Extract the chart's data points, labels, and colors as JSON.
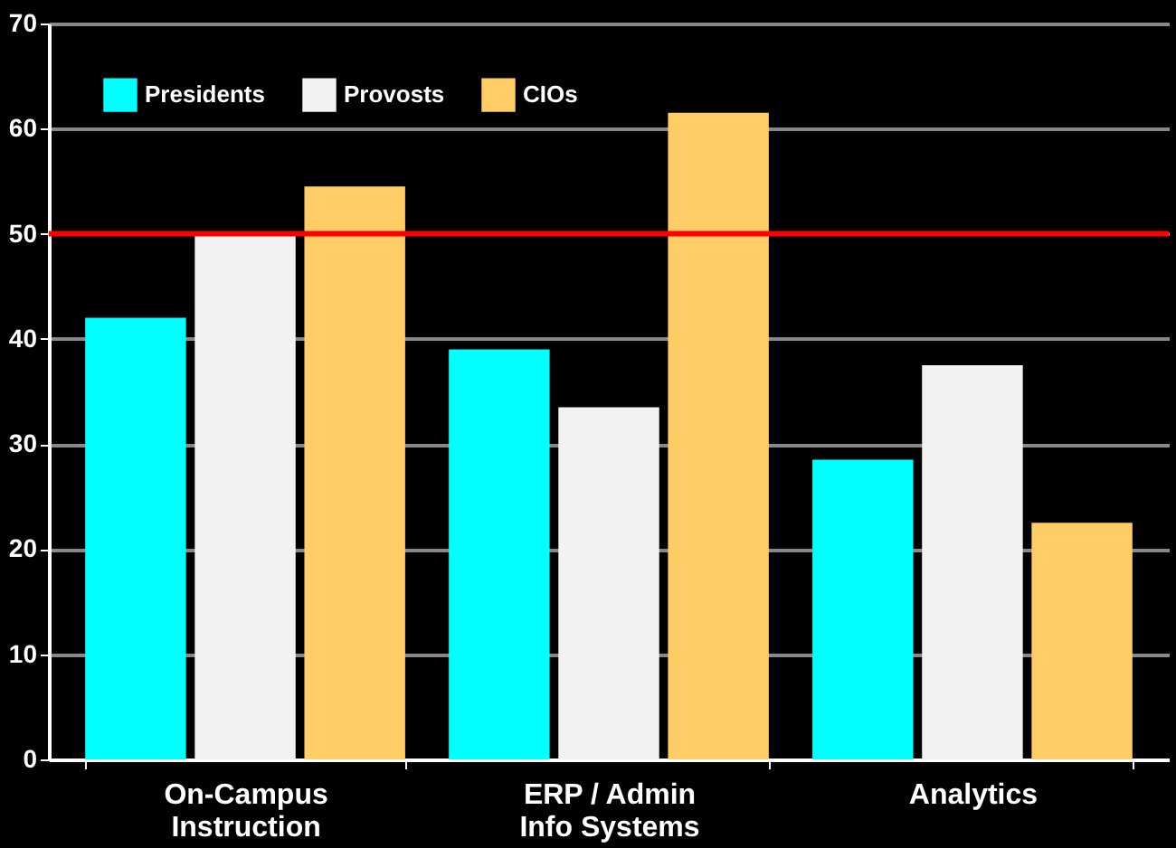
{
  "chart_data": {
    "type": "bar",
    "categories": [
      "On-Campus\nInstruction",
      "ERP / Admin\nInfo Systems",
      "Analytics"
    ],
    "series": [
      {
        "name": "Presidents",
        "color": "#00ffff",
        "values": [
          42,
          39,
          28.5
        ]
      },
      {
        "name": "Provosts",
        "color": "#f2f2f2",
        "values": [
          50,
          33.5,
          37.5
        ]
      },
      {
        "name": "CIOs",
        "color": "#ffcc66",
        "values": [
          54.5,
          61.5,
          22.5
        ]
      }
    ],
    "ylim": [
      0,
      70
    ],
    "yticks": [
      0,
      10,
      20,
      30,
      40,
      50,
      60,
      70
    ],
    "grid": "y",
    "legend": "top left",
    "ref_lines": [
      {
        "axis": "y",
        "value": 50,
        "color": "#ff0000"
      }
    ]
  }
}
